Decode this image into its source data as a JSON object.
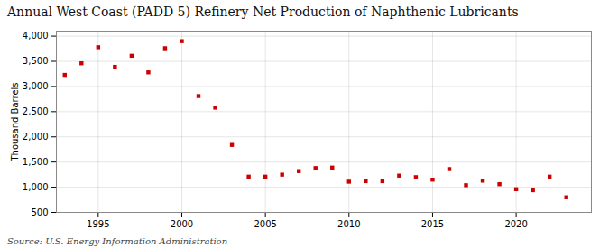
{
  "chart_data": {
    "type": "scatter",
    "title": "Annual West Coast (PADD 5) Refinery Net Production of Naphthenic Lubricants",
    "ylabel": "Thousand Barrels",
    "source": "Source: U.S. Energy Information Administration",
    "color": "#cc0000",
    "marker": "square",
    "x": [
      1993,
      1994,
      1995,
      1996,
      1997,
      1998,
      1999,
      2000,
      2001,
      2002,
      2003,
      2004,
      2005,
      2006,
      2007,
      2008,
      2009,
      2010,
      2011,
      2012,
      2013,
      2014,
      2015,
      2016,
      2017,
      2018,
      2019,
      2020,
      2021,
      2022,
      2023
    ],
    "values": [
      3230,
      3460,
      3780,
      3390,
      3610,
      3280,
      3760,
      3900,
      2810,
      2580,
      1840,
      1210,
      1210,
      1250,
      1320,
      1380,
      1390,
      1110,
      1120,
      1120,
      1230,
      1200,
      1150,
      1360,
      1040,
      1130,
      1060,
      960,
      940,
      1210,
      800
    ],
    "xlim": [
      1992.5,
      2024.5
    ],
    "xticks": [
      1995,
      2000,
      2005,
      2010,
      2015,
      2020
    ],
    "ylim": [
      500,
      4100
    ],
    "yticks": [
      500,
      {
        "value": 1000,
        "label": "1,000"
      },
      {
        "value": 1500,
        "label": "1,500"
      },
      {
        "value": 2000,
        "label": "2,000"
      },
      {
        "value": 2500,
        "label": "2,500"
      },
      {
        "value": 3000,
        "label": "3,000"
      },
      {
        "value": 3500,
        "label": "3,500"
      },
      {
        "value": 4000,
        "label": "4,000"
      }
    ],
    "grid": true
  }
}
